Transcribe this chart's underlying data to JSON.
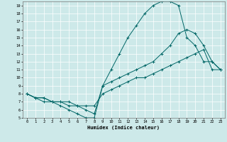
{
  "xlabel": "Humidex (Indice chaleur)",
  "xlim": [
    -0.5,
    23.5
  ],
  "ylim": [
    5,
    19.5
  ],
  "xtick_labels": [
    "0",
    "1",
    "2",
    "3",
    "4",
    "5",
    "6",
    "7",
    "8",
    "9",
    "10",
    "11",
    "12",
    "13",
    "14",
    "15",
    "16",
    "17",
    "18",
    "19",
    "20",
    "21",
    "22",
    "23"
  ],
  "xticks": [
    0,
    1,
    2,
    3,
    4,
    5,
    6,
    7,
    8,
    9,
    10,
    11,
    12,
    13,
    14,
    15,
    16,
    17,
    18,
    19,
    20,
    21,
    22,
    23
  ],
  "yticks": [
    5,
    6,
    7,
    8,
    9,
    10,
    11,
    12,
    13,
    14,
    15,
    16,
    17,
    18,
    19
  ],
  "ytick_labels": [
    "5",
    "6",
    "7",
    "8",
    "9",
    "10",
    "11",
    "12",
    "13",
    "14",
    "15",
    "16",
    "17",
    "18",
    "19"
  ],
  "bg_color": "#cde9e9",
  "grid_color": "#b0d4d4",
  "line_color": "#006666",
  "curve1_x": [
    0,
    1,
    2,
    3,
    4,
    5,
    6,
    7,
    8,
    9,
    10,
    11,
    12,
    13,
    14,
    15,
    16,
    17,
    18,
    19,
    20,
    21,
    22,
    23
  ],
  "curve1_y": [
    8,
    7.5,
    7,
    7,
    6.5,
    6,
    5.5,
    5,
    5,
    9,
    11,
    13,
    15,
    16.5,
    18,
    19,
    19.5,
    19.5,
    19,
    15,
    14,
    12,
    12,
    11
  ],
  "curve2_x": [
    0,
    1,
    2,
    3,
    4,
    5,
    6,
    7,
    8,
    9,
    10,
    11,
    12,
    13,
    14,
    15,
    16,
    17,
    18,
    19,
    20,
    21,
    22,
    23
  ],
  "curve2_y": [
    8,
    7.5,
    7.5,
    7,
    7,
    6.5,
    6.5,
    6,
    5.5,
    9,
    9.5,
    10,
    10.5,
    11,
    11.5,
    12,
    13,
    14,
    15.5,
    16,
    15.5,
    14,
    12,
    11
  ],
  "curve3_x": [
    0,
    1,
    2,
    3,
    4,
    5,
    6,
    7,
    8,
    9,
    10,
    11,
    12,
    13,
    14,
    15,
    16,
    17,
    18,
    19,
    20,
    21,
    22,
    23
  ],
  "curve3_y": [
    8,
    7.5,
    7.5,
    7,
    7,
    7,
    6.5,
    6.5,
    6.5,
    8,
    8.5,
    9,
    9.5,
    10,
    10,
    10.5,
    11,
    11.5,
    12,
    12.5,
    13,
    13.5,
    11,
    11
  ]
}
